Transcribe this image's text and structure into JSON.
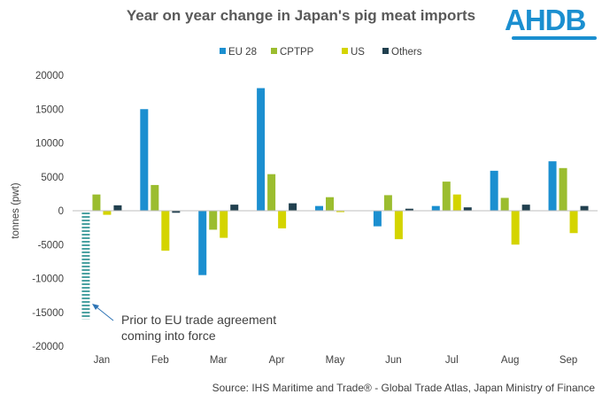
{
  "title": "Year on year change in Japan's pig meat imports",
  "logo": "AHDB",
  "source": "Source: IHS Maritime and Trade®  - Global Trade  Atlas, Japan  Ministry of Finance",
  "annotation": {
    "line1": "Prior to EU trade agreement",
    "line2": "coming into force",
    "value": -16000,
    "category": "Jan"
  },
  "colors": {
    "EU 28": "#1b8fd0",
    "CPTPP": "#9bbd2f",
    "US": "#d4d400",
    "Others": "#21404f",
    "logo": "#1b8fd0",
    "annotation": "#1f8a8a"
  },
  "chart_data": {
    "type": "bar",
    "title": "Year on year change in Japan's pig meat imports",
    "ylabel": "tonnes (pwt)",
    "xlabel": "",
    "ylim": [
      -20000,
      20000
    ],
    "yticks": [
      20000,
      15000,
      10000,
      5000,
      0,
      -5000,
      -10000,
      -15000,
      -20000
    ],
    "ytick_labels": [
      "20000",
      "15000",
      "10000",
      "5000",
      "0",
      "-5000",
      "-10000",
      "-15000",
      "-20000"
    ],
    "categories": [
      "Jan",
      "Feb",
      "Mar",
      "Apr",
      "May",
      "Jun",
      "Jul",
      "Aug",
      "Sep"
    ],
    "legend_position": "top",
    "grid": false,
    "series": [
      {
        "name": "EU 28",
        "values": [
          0,
          15000,
          -9500,
          18100,
          700,
          -2300,
          700,
          5900,
          7300
        ]
      },
      {
        "name": "CPTPP",
        "values": [
          2400,
          3800,
          -2800,
          5400,
          2000,
          2300,
          4300,
          1900,
          6300
        ]
      },
      {
        "name": "US",
        "values": [
          -600,
          -5900,
          -4000,
          -2600,
          -200,
          -4200,
          2400,
          -5000,
          -3300
        ]
      },
      {
        "name": "Others",
        "values": [
          800,
          -300,
          900,
          1100,
          0,
          300,
          500,
          900,
          700
        ]
      }
    ]
  }
}
